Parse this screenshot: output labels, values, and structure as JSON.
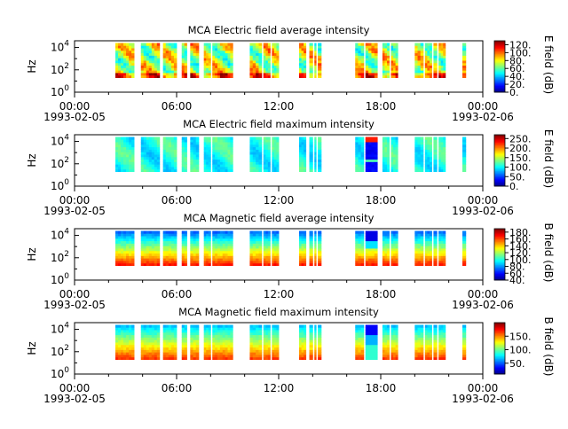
{
  "figure": {
    "panel_count": 4
  },
  "chart_data": [
    {
      "type": "heatmap",
      "title": "MCA  Electric field average intensity",
      "ylabel": "Hz",
      "colorbar_label": "E field (dB)",
      "colorbar_ticks": [
        "0.",
        "20.",
        "40.",
        "60.",
        "80.",
        "100.",
        "120."
      ],
      "colorbar_range": [
        0,
        130
      ],
      "y_ticks": [
        {
          "base": "10",
          "exp": "0"
        },
        {
          "base": "10",
          "exp": "2"
        },
        {
          "base": "10",
          "exp": "4"
        }
      ],
      "y_range_log10": [
        0,
        4.6
      ],
      "x_ticks": [
        "00:00",
        "06:00",
        "12:00",
        "18:00",
        "00:00"
      ],
      "x_dates": [
        "1993-02-05",
        "1993-02-06"
      ],
      "x_range_hours": [
        0,
        24
      ],
      "segments_hours": [
        [
          2.4,
          3.5
        ],
        [
          3.9,
          5.0
        ],
        [
          5.2,
          6.0
        ],
        [
          6.3,
          6.6
        ],
        [
          6.8,
          7.3
        ],
        [
          7.6,
          8.0
        ],
        [
          8.1,
          9.3
        ],
        [
          10.3,
          11.0
        ],
        [
          11.1,
          11.5
        ],
        [
          11.6,
          12.0
        ],
        [
          13.2,
          13.6
        ],
        [
          13.8,
          14.0
        ],
        [
          14.1,
          14.2
        ],
        [
          14.3,
          14.5
        ],
        [
          16.5,
          17.0
        ],
        [
          17.1,
          17.8
        ],
        [
          18.1,
          18.5
        ],
        [
          18.6,
          19.0
        ],
        [
          20.0,
          20.5
        ],
        [
          20.6,
          21.0
        ],
        [
          21.1,
          21.3
        ],
        [
          21.4,
          21.8
        ],
        [
          22.8,
          23.0
        ]
      ]
    },
    {
      "type": "heatmap",
      "title": "MCA  Electric field maximum intensity",
      "ylabel": "Hz",
      "colorbar_label": "E field (dB)",
      "colorbar_ticks": [
        "0.",
        "50.",
        "100.",
        "150.",
        "200.",
        "250."
      ],
      "colorbar_range": [
        0,
        270
      ],
      "y_ticks": [
        {
          "base": "10",
          "exp": "0"
        },
        {
          "base": "10",
          "exp": "2"
        },
        {
          "base": "10",
          "exp": "4"
        }
      ],
      "y_range_log10": [
        0,
        4.6
      ],
      "x_ticks": [
        "00:00",
        "06:00",
        "12:00",
        "18:00",
        "00:00"
      ],
      "x_dates": [
        "1993-02-05",
        "1993-02-06"
      ],
      "x_range_hours": [
        0,
        24
      ],
      "segments_hours": [
        [
          2.4,
          3.5
        ],
        [
          3.9,
          5.0
        ],
        [
          5.2,
          6.0
        ],
        [
          6.3,
          6.6
        ],
        [
          6.8,
          7.3
        ],
        [
          7.6,
          8.0
        ],
        [
          8.1,
          9.3
        ],
        [
          10.3,
          11.0
        ],
        [
          11.1,
          11.5
        ],
        [
          11.6,
          12.0
        ],
        [
          13.2,
          13.6
        ],
        [
          13.8,
          14.0
        ],
        [
          14.1,
          14.2
        ],
        [
          14.3,
          14.5
        ],
        [
          16.5,
          17.0
        ],
        [
          17.1,
          17.8
        ],
        [
          18.1,
          18.5
        ],
        [
          18.6,
          19.0
        ],
        [
          20.0,
          20.5
        ],
        [
          20.6,
          21.0
        ],
        [
          21.1,
          21.3
        ],
        [
          21.4,
          21.8
        ],
        [
          22.8,
          23.0
        ]
      ]
    },
    {
      "type": "heatmap",
      "title": "MCA  Magnetic field average intensity",
      "ylabel": "Hz",
      "colorbar_label": "B field (dB)",
      "colorbar_ticks": [
        "40.",
        "60.",
        "80.",
        "100.",
        "120.",
        "140.",
        "160.",
        "180."
      ],
      "colorbar_range": [
        40,
        190
      ],
      "y_ticks": [
        {
          "base": "10",
          "exp": "0"
        },
        {
          "base": "10",
          "exp": "2"
        },
        {
          "base": "10",
          "exp": "4"
        }
      ],
      "y_range_log10": [
        0,
        4.6
      ],
      "x_ticks": [
        "00:00",
        "06:00",
        "12:00",
        "18:00",
        "00:00"
      ],
      "x_dates": [
        "1993-02-05",
        "1993-02-06"
      ],
      "x_range_hours": [
        0,
        24
      ],
      "segments_hours": [
        [
          2.4,
          3.5
        ],
        [
          3.9,
          5.0
        ],
        [
          5.2,
          6.0
        ],
        [
          6.3,
          6.6
        ],
        [
          6.8,
          7.3
        ],
        [
          7.6,
          8.0
        ],
        [
          8.1,
          9.3
        ],
        [
          10.3,
          11.0
        ],
        [
          11.1,
          11.5
        ],
        [
          11.6,
          12.0
        ],
        [
          13.2,
          13.6
        ],
        [
          13.8,
          14.0
        ],
        [
          14.1,
          14.2
        ],
        [
          14.3,
          14.5
        ],
        [
          16.5,
          17.0
        ],
        [
          17.1,
          17.8
        ],
        [
          18.1,
          18.5
        ],
        [
          18.6,
          19.0
        ],
        [
          20.0,
          20.5
        ],
        [
          20.6,
          21.0
        ],
        [
          21.1,
          21.3
        ],
        [
          21.4,
          21.8
        ],
        [
          22.8,
          23.0
        ]
      ]
    },
    {
      "type": "heatmap",
      "title": "MCA  Magnetic field maximum intensity",
      "ylabel": "Hz",
      "colorbar_label": "B field (dB)",
      "colorbar_ticks": [
        "50.",
        "100.",
        "150."
      ],
      "colorbar_range": [
        10,
        200
      ],
      "y_ticks": [
        {
          "base": "10",
          "exp": "0"
        },
        {
          "base": "10",
          "exp": "2"
        },
        {
          "base": "10",
          "exp": "4"
        }
      ],
      "y_range_log10": [
        0,
        4.6
      ],
      "x_ticks": [
        "00:00",
        "06:00",
        "12:00",
        "18:00",
        "00:00"
      ],
      "x_dates": [
        "1993-02-05",
        "1993-02-06"
      ],
      "x_range_hours": [
        0,
        24
      ],
      "segments_hours": [
        [
          2.4,
          3.5
        ],
        [
          3.9,
          5.0
        ],
        [
          5.2,
          6.0
        ],
        [
          6.3,
          6.6
        ],
        [
          6.8,
          7.3
        ],
        [
          7.6,
          8.0
        ],
        [
          8.1,
          9.3
        ],
        [
          10.3,
          11.0
        ],
        [
          11.1,
          11.5
        ],
        [
          11.6,
          12.0
        ],
        [
          13.2,
          13.6
        ],
        [
          13.8,
          14.0
        ],
        [
          14.1,
          14.2
        ],
        [
          14.3,
          14.5
        ],
        [
          16.5,
          17.0
        ],
        [
          17.1,
          17.8
        ],
        [
          18.1,
          18.5
        ],
        [
          18.6,
          19.0
        ],
        [
          20.0,
          20.5
        ],
        [
          20.6,
          21.0
        ],
        [
          21.1,
          21.3
        ],
        [
          21.4,
          21.8
        ],
        [
          22.8,
          23.0
        ]
      ]
    }
  ]
}
